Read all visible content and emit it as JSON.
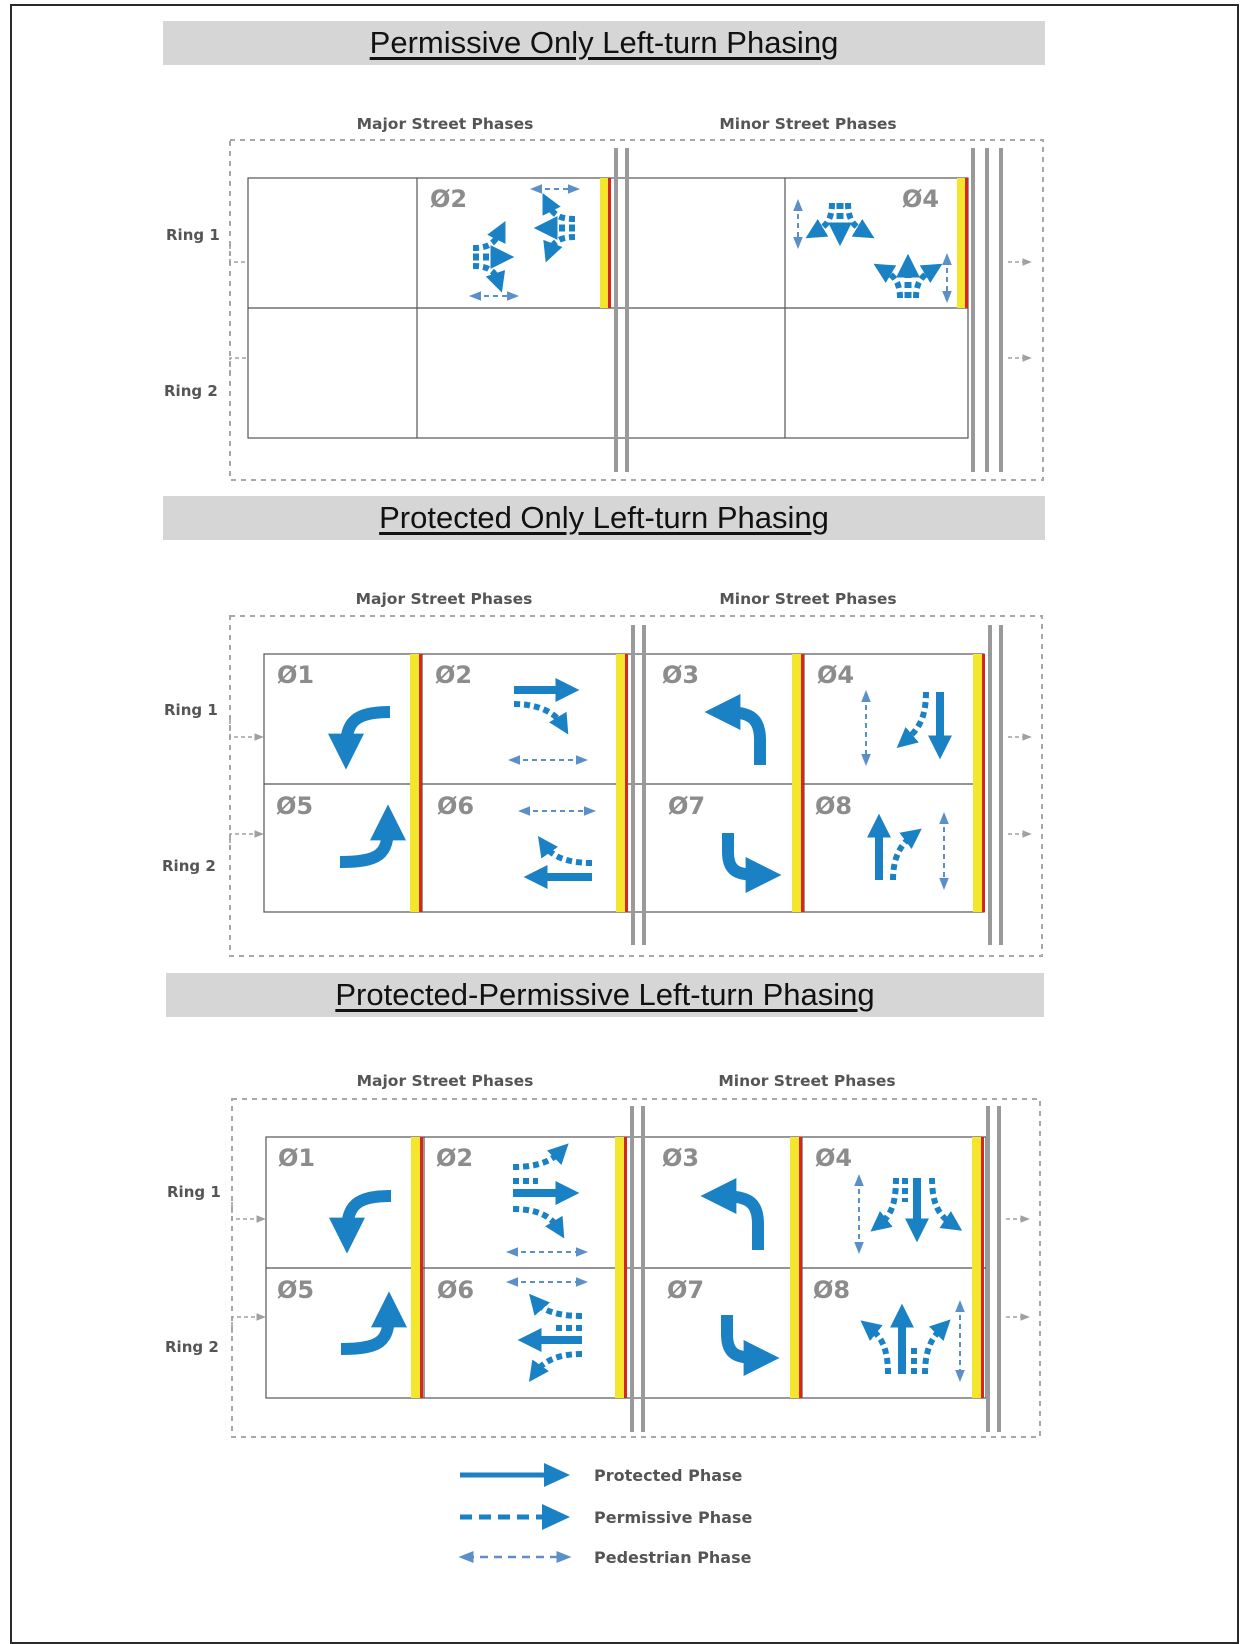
{
  "sections": [
    {
      "title": "Permissive Only Left-turn Phasing",
      "major_header": "Major Street Phases",
      "minor_header": "Minor Street Phases",
      "ring1_label": "Ring 1",
      "ring2_label": "Ring 2",
      "phases": [
        "Ø2",
        "Ø4"
      ]
    },
    {
      "title": "Protected Only Left-turn Phasing",
      "major_header": "Major Street Phases",
      "minor_header": "Minor Street Phases",
      "ring1_label": "Ring 1",
      "ring2_label": "Ring 2",
      "phases": [
        "Ø1",
        "Ø2",
        "Ø3",
        "Ø4",
        "Ø5",
        "Ø6",
        "Ø7",
        "Ø8"
      ]
    },
    {
      "title": "Protected-Permissive Left-turn Phasing",
      "major_header": "Major Street Phases",
      "minor_header": "Minor Street Phases",
      "ring1_label": "Ring 1",
      "ring2_label": "Ring 2",
      "phases": [
        "Ø1",
        "Ø2",
        "Ø3",
        "Ø4",
        "Ø5",
        "Ø6",
        "Ø7",
        "Ø8"
      ]
    }
  ],
  "legend": {
    "protected": "Protected Phase",
    "permissive": "Permissive Phase",
    "pedestrian": "Pedestrian Phase"
  },
  "colors": {
    "arrow_blue": "#1a82c4",
    "pedestrian_blue": "#5a8fc8",
    "yellow_clearance": "#f3e62c",
    "red_clearance": "#d7261e",
    "barrier_gray": "#9a9a9a",
    "banner_gray": "#d6d6d6"
  }
}
